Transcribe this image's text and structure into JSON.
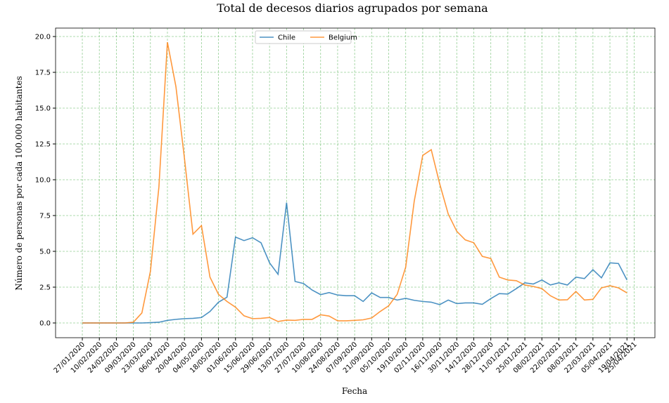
{
  "chart_data": {
    "type": "line",
    "title": "Total de decesos diarios agrupados por semana",
    "xlabel": "Fecha",
    "ylabel": "Número de personas por cada 100.000 habitantes",
    "x": [
      "27/01/2020",
      "03/02/2020",
      "10/02/2020",
      "17/02/2020",
      "24/02/2020",
      "02/03/2020",
      "09/03/2020",
      "16/03/2020",
      "23/03/2020",
      "30/03/2020",
      "06/04/2020",
      "13/04/2020",
      "20/04/2020",
      "27/04/2020",
      "04/05/2020",
      "11/05/2020",
      "18/05/2020",
      "25/05/2020",
      "01/06/2020",
      "08/06/2020",
      "15/06/2020",
      "22/06/2020",
      "29/06/2020",
      "06/07/2020",
      "13/07/2020",
      "20/07/2020",
      "27/07/2020",
      "03/08/2020",
      "10/08/2020",
      "17/08/2020",
      "24/08/2020",
      "31/08/2020",
      "07/09/2020",
      "14/09/2020",
      "21/09/2020",
      "28/09/2020",
      "05/10/2020",
      "12/10/2020",
      "19/10/2020",
      "26/10/2020",
      "02/11/2020",
      "09/11/2020",
      "16/11/2020",
      "23/11/2020",
      "30/11/2020",
      "07/12/2020",
      "14/12/2020",
      "21/12/2020",
      "28/12/2020",
      "04/01/2021",
      "11/01/2021",
      "18/01/2021",
      "25/01/2021",
      "01/02/2021",
      "08/02/2021",
      "15/02/2021",
      "22/02/2021",
      "01/03/2021",
      "08/03/2021",
      "15/03/2021",
      "22/03/2021",
      "29/03/2021",
      "05/04/2021",
      "12/04/2021",
      "19/04/2021"
    ],
    "series": [
      {
        "name": "Chile",
        "color": "#1f77b4",
        "values": [
          0,
          0,
          0,
          0,
          0,
          0,
          0,
          0,
          0.02,
          0.05,
          0.18,
          0.25,
          0.3,
          0.32,
          0.38,
          0.8,
          1.45,
          1.8,
          6.0,
          5.75,
          5.95,
          5.6,
          4.2,
          3.4,
          8.4,
          2.9,
          2.75,
          2.3,
          1.98,
          2.12,
          1.95,
          1.9,
          1.9,
          1.5,
          2.1,
          1.78,
          1.78,
          1.6,
          1.72,
          1.58,
          1.5,
          1.45,
          1.28,
          1.6,
          1.35,
          1.4,
          1.4,
          1.3,
          1.7,
          2.05,
          2.02,
          2.4,
          2.8,
          2.72,
          3.0,
          2.65,
          2.8,
          2.65,
          3.2,
          3.1,
          3.72,
          3.15,
          4.2,
          4.15,
          3.0
        ]
      },
      {
        "name": "Belgium",
        "color": "#ff7f0e",
        "values": [
          0,
          0,
          0,
          0,
          0,
          0,
          0.05,
          0.7,
          3.6,
          9.5,
          19.6,
          16.5,
          11.5,
          6.2,
          6.8,
          3.2,
          2.0,
          1.5,
          1.1,
          0.5,
          0.3,
          0.32,
          0.38,
          0.1,
          0.2,
          0.18,
          0.25,
          0.25,
          0.57,
          0.48,
          0.15,
          0.15,
          0.18,
          0.22,
          0.35,
          0.8,
          1.2,
          2.0,
          3.9,
          8.5,
          11.7,
          12.1,
          9.7,
          7.6,
          6.4,
          5.8,
          5.6,
          4.65,
          4.5,
          3.2,
          3.0,
          2.95,
          2.65,
          2.55,
          2.4,
          1.9,
          1.6,
          1.62,
          2.2,
          1.6,
          1.65,
          2.45,
          2.6,
          2.45,
          2.1
        ]
      }
    ],
    "xlim": [
      "05/01/2020",
      "12/05/2021"
    ],
    "xticks": [
      "27/01/2020",
      "10/02/2020",
      "24/02/2020",
      "09/03/2020",
      "23/03/2020",
      "06/04/2020",
      "20/04/2020",
      "04/05/2020",
      "18/05/2020",
      "01/06/2020",
      "15/06/2020",
      "29/06/2020",
      "13/07/2020",
      "27/07/2020",
      "10/08/2020",
      "24/08/2020",
      "07/09/2020",
      "21/09/2020",
      "05/10/2020",
      "19/10/2020",
      "02/11/2020",
      "16/11/2020",
      "30/11/2020",
      "14/12/2020",
      "28/12/2020",
      "11/01/2021",
      "25/01/2021",
      "08/02/2021",
      "22/02/2021",
      "08/03/2021",
      "22/03/2021",
      "05/04/2021",
      "19/04/2021",
      "25/04/2021"
    ],
    "ylim": [
      -1.03,
      20.59
    ],
    "yticks": [
      {
        "value": 0,
        "label": "0.0"
      },
      2.5,
      {
        "value": 5,
        "label": "5.0"
      },
      7.5,
      {
        "value": 10,
        "label": "10.0"
      },
      12.5,
      {
        "value": 15,
        "label": "15.0"
      },
      17.5,
      {
        "value": 20,
        "label": "20.0"
      }
    ],
    "grid": true,
    "grid_color": "#2ca02c",
    "legend": "upper center"
  }
}
